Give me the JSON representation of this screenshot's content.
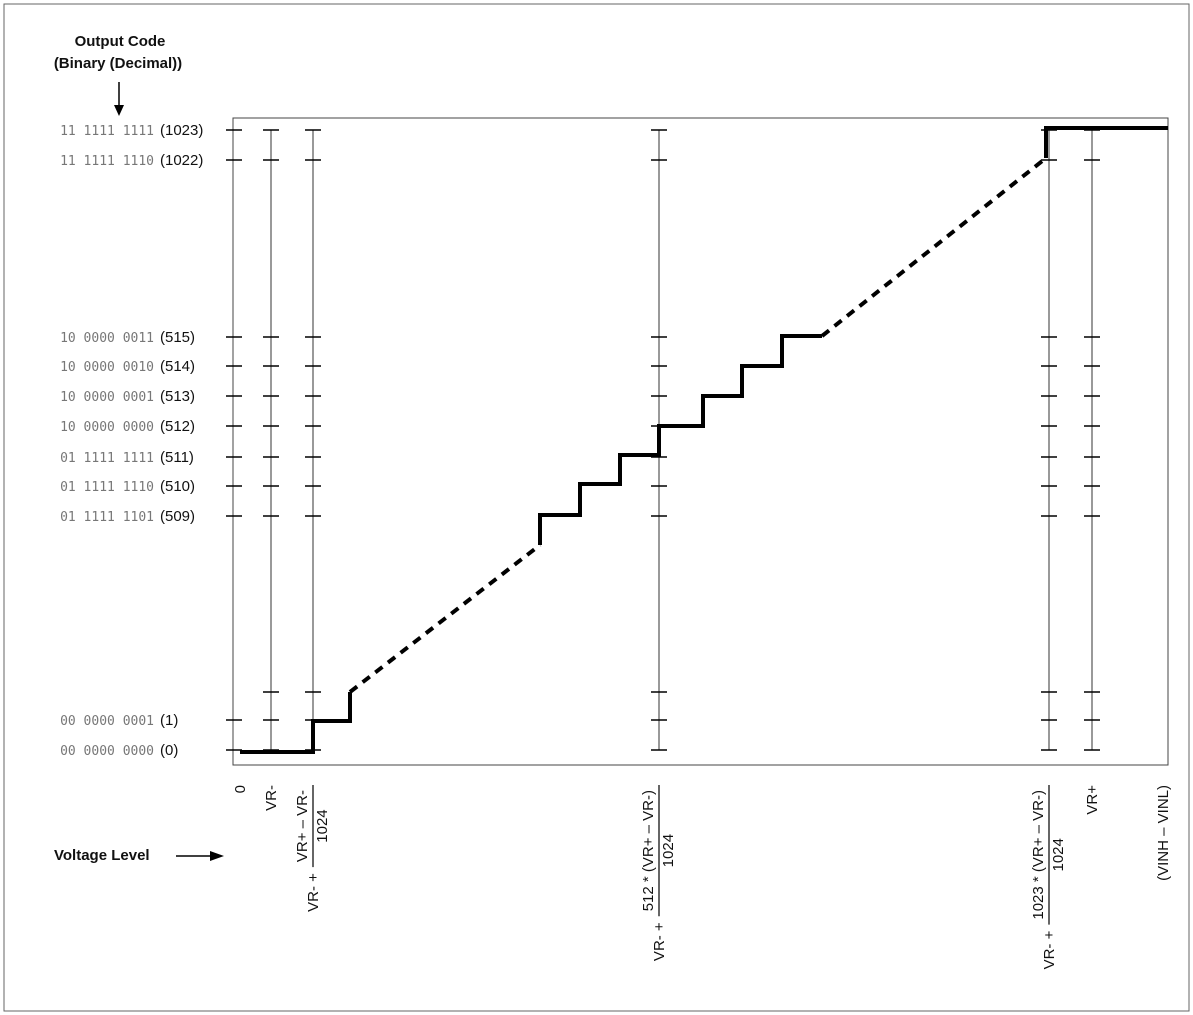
{
  "header": {
    "title": "Output Code",
    "subtitle": "(Binary (Decimal))"
  },
  "output_codes": [
    {
      "binary": "11 1111 1111",
      "decimal": "(1023)"
    },
    {
      "binary": "11 1111 1110",
      "decimal": "(1022)"
    },
    {
      "binary": "10 0000 0011",
      "decimal": "(515)"
    },
    {
      "binary": "10 0000 0010",
      "decimal": "(514)"
    },
    {
      "binary": "10 0000 0001",
      "decimal": "(513)"
    },
    {
      "binary": "10 0000 0000",
      "decimal": "(512)"
    },
    {
      "binary": "01 1111 1111",
      "decimal": "(511)"
    },
    {
      "binary": "01 1111 1110",
      "decimal": "(510)"
    },
    {
      "binary": "01 1111 1101",
      "decimal": "(509)"
    },
    {
      "binary": "00 0000 0001",
      "decimal": "(1)"
    },
    {
      "binary": "00 0000 0000",
      "decimal": "(0)"
    }
  ],
  "voltage_label": "Voltage Level",
  "voltage_levels": [
    {
      "text": "0"
    },
    {
      "text": "VR-"
    },
    {
      "prefix": "VR- +",
      "numerator": "VR+ – VR-",
      "denominator": "1024"
    },
    {
      "prefix": "VR- +",
      "numerator": "512 * (VR+ – VR-)",
      "denominator": "1024"
    },
    {
      "prefix": "VR- +",
      "numerator": "1023 * (VR+ – VR-)",
      "denominator": "1024"
    },
    {
      "text": "VR+"
    },
    {
      "text": "(VINH – VINL)"
    }
  ]
}
